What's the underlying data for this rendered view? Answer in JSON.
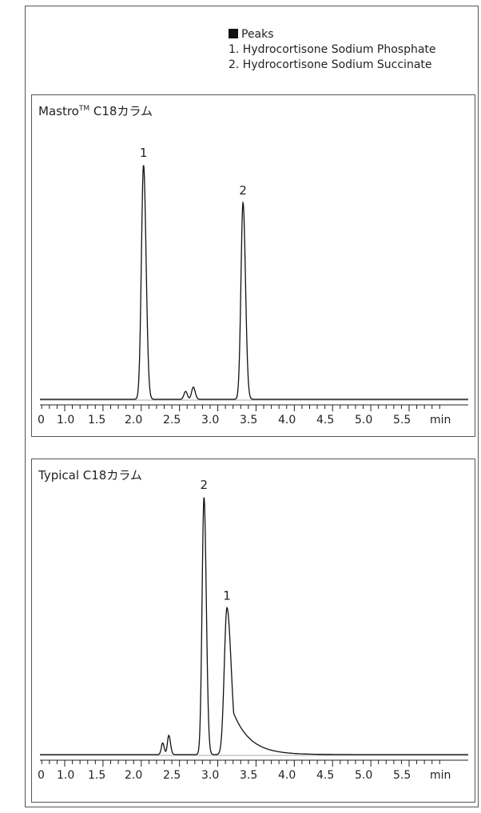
{
  "legend": {
    "heading": "Peaks",
    "items": [
      "1. Hydrocortisone Sodium Phosphate",
      "2. Hydrocortisone Sodium Succinate"
    ]
  },
  "chart_data": [
    {
      "type": "line",
      "title_prefix": "Mastro",
      "title_sup": "TM",
      "title_suffix": " C18カラム",
      "xlabel": "min",
      "x_tick_labels": [
        "0",
        "1.0",
        "1.5",
        "2.0",
        "2.5",
        "3.0",
        "3.5",
        "4.0",
        "4.5",
        "5.0",
        "5.5",
        "min"
      ],
      "xlim": [
        0.55,
        6.0
      ],
      "ylim": [
        0,
        1.05
      ],
      "series": [
        {
          "peaks": [
            {
              "label": "1",
              "rt": 2.03,
              "height": 1.0,
              "width_left": 0.028,
              "width_right": 0.033
            },
            {
              "label": "",
              "rt": 2.58,
              "height": 0.034,
              "width_left": 0.022,
              "width_right": 0.022
            },
            {
              "label": "",
              "rt": 2.68,
              "height": 0.052,
              "width_left": 0.022,
              "width_right": 0.025
            },
            {
              "label": "2",
              "rt": 3.33,
              "height": 0.84,
              "width_left": 0.027,
              "width_right": 0.032
            }
          ]
        }
      ]
    },
    {
      "type": "line",
      "title_prefix": "Typical C18カラム",
      "title_sup": "",
      "title_suffix": "",
      "xlabel": "min",
      "x_tick_labels": [
        "0",
        "1.0",
        "1.5",
        "2.0",
        "2.5",
        "3.0",
        "3.5",
        "4.0",
        "4.5",
        "5.0",
        "5.5",
        "min"
      ],
      "xlim": [
        0.55,
        6.0
      ],
      "ylim": [
        0,
        1.05
      ],
      "series": [
        {
          "peaks": [
            {
              "label": "",
              "rt": 2.28,
              "height": 0.045,
              "width_left": 0.018,
              "width_right": 0.02
            },
            {
              "label": "",
              "rt": 2.36,
              "height": 0.075,
              "width_left": 0.018,
              "width_right": 0.022
            },
            {
              "label": "2",
              "rt": 2.82,
              "height": 1.0,
              "width_left": 0.025,
              "width_right": 0.03
            },
            {
              "label": "1",
              "rt": 3.12,
              "height": 0.57,
              "width_left": 0.035,
              "width_right": 0.055,
              "tail": 0.22
            }
          ]
        }
      ]
    }
  ]
}
